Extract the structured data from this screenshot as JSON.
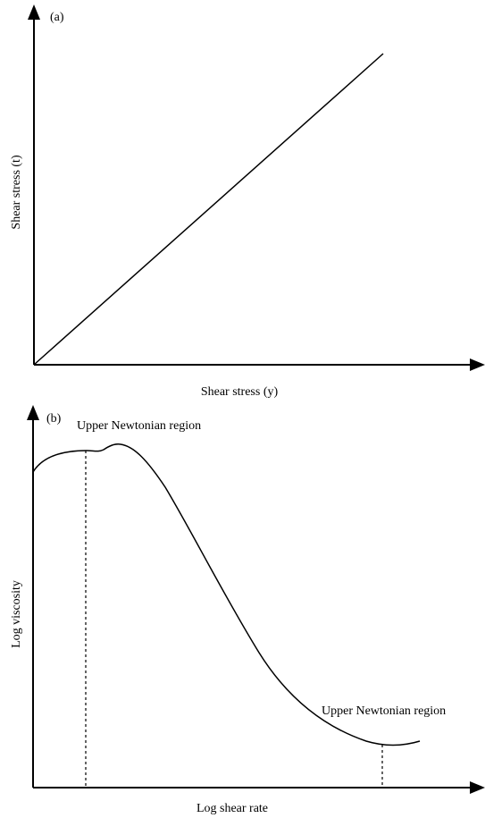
{
  "panels": [
    {
      "label": "(a)",
      "ylabel": "Shear stress (t)",
      "xlabel": "Shear stress (y)"
    },
    {
      "label": "(b)",
      "ylabel": "Log viscosity",
      "xlabel": "Log shear rate",
      "annotations": [
        "Upper Newtonian region",
        "Upper Newtonian region"
      ]
    }
  ],
  "colors": {
    "line": "#000000",
    "background": "#ffffff"
  }
}
